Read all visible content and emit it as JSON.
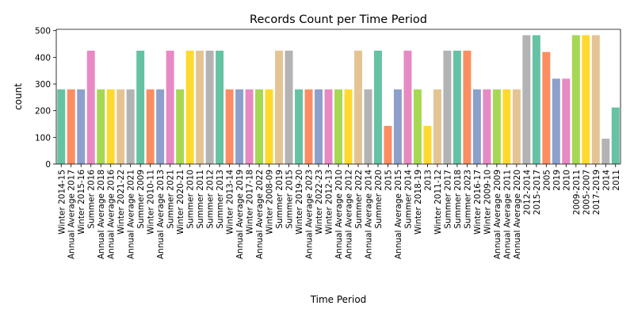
{
  "chart_data": {
    "type": "bar",
    "title": "Records Count per Time Period",
    "xlabel": "Time Period",
    "ylabel": "count",
    "ylim": [
      0,
      505
    ],
    "yticks": [
      0,
      100,
      200,
      300,
      400,
      500
    ],
    "grid": false,
    "legend": "none",
    "palette": [
      "#66c2a5",
      "#fc8d62",
      "#8da0cb",
      "#e78ac3",
      "#a6d854",
      "#ffd92f",
      "#e5c494",
      "#b3b3b3"
    ],
    "categories": [
      "Winter 2014-15",
      "Annual Average 2017",
      "Winter 2015-16",
      "Summer 2016",
      "Annual Average 2018",
      "Annual Average 2016",
      "Winter 2021-22",
      "Annual Average 2021",
      "Summer 2009",
      "Winter 2010-11",
      "Annual Average 2013",
      "Summer 2021",
      "Winter 2020-21",
      "Summer 2010",
      "Summer 2011",
      "Summer 2012",
      "Summer 2013",
      "Winter 2013-14",
      "Annual Average 2019",
      "Winter 2017-18",
      "Annual Average 2022",
      "Winter 2008-09",
      "Summer 2019",
      "Summer 2015",
      "Winter 2019-20",
      "Annual Average 2023",
      "Winter 2022-23",
      "Winter 2012-13",
      "Annual Average 2010",
      "Annual Average 2012",
      "Summer 2022",
      "Annual Average 2014",
      "Summer 2020",
      "2015",
      "Annual Average 2015",
      "Summer 2014",
      "Winter 2018-19",
      "2013",
      "Winter 2011-12",
      "Summer 2017",
      "Summer 2018",
      "Summer 2023",
      "Winter 2016-17",
      "Winter 2009-10",
      "Annual Average 2009",
      "Annual Average 2011",
      "Annual Average 2020",
      "2012-2014",
      "2015-2017",
      "2005",
      "2019",
      "2010",
      "2009-2011",
      "2005-2007",
      "2017-2019",
      "2014",
      "2011"
    ],
    "values": [
      280,
      280,
      280,
      425,
      280,
      280,
      280,
      280,
      425,
      280,
      280,
      425,
      280,
      425,
      425,
      425,
      425,
      280,
      280,
      280,
      280,
      280,
      425,
      425,
      280,
      280,
      280,
      280,
      280,
      280,
      425,
      280,
      425,
      143,
      280,
      425,
      280,
      143,
      280,
      425,
      425,
      425,
      280,
      280,
      280,
      280,
      280,
      483,
      483,
      420,
      320,
      320,
      483,
      483,
      483,
      95,
      212
    ]
  }
}
